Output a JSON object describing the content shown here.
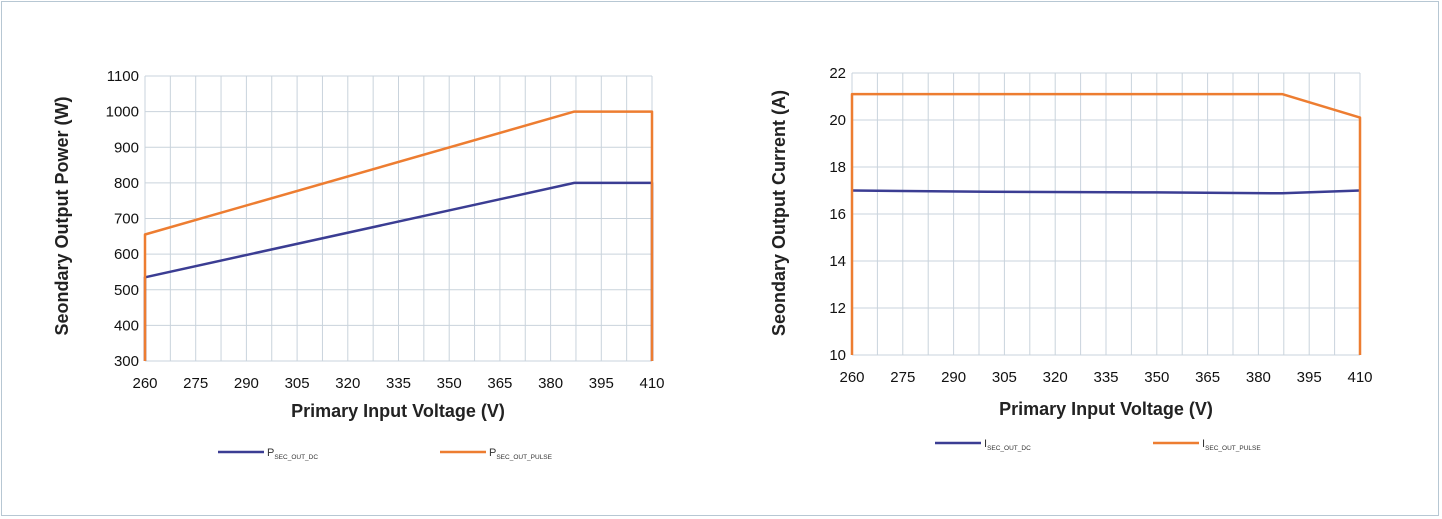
{
  "chart_data": [
    {
      "type": "line",
      "title": "",
      "xlabel": "Primary Input Voltage (V)",
      "ylabel": "Seondary Output Power (W)",
      "xlim": [
        260,
        410
      ],
      "ylim": [
        300,
        1100
      ],
      "xticks": [
        260,
        275,
        290,
        305,
        320,
        335,
        350,
        365,
        380,
        395,
        410
      ],
      "yticks": [
        300,
        400,
        500,
        600,
        700,
        800,
        900,
        1000,
        1100
      ],
      "grid": true,
      "legend_position": "bottom",
      "series": [
        {
          "name": "P",
          "name_sub": "SEC_OUT_DC",
          "color": "#3b3d93",
          "points": [
            [
              260,
              300
            ],
            [
              260,
              535
            ],
            [
              387,
              800
            ],
            [
              410,
              800
            ],
            [
              410,
              300
            ]
          ]
        },
        {
          "name": "P",
          "name_sub": "SEC_OUT_PULSE",
          "color": "#ed7d31",
          "points": [
            [
              260,
              300
            ],
            [
              260,
              655
            ],
            [
              387,
              1000
            ],
            [
              410,
              1000
            ],
            [
              410,
              300
            ]
          ]
        }
      ]
    },
    {
      "type": "line",
      "title": "",
      "xlabel": "Primary Input Voltage (V)",
      "ylabel": "Seondary Output Current (A)",
      "xlim": [
        260,
        410
      ],
      "ylim": [
        10,
        22
      ],
      "xticks": [
        260,
        275,
        290,
        305,
        320,
        335,
        350,
        365,
        380,
        395,
        410
      ],
      "yticks": [
        10,
        12,
        14,
        16,
        18,
        20,
        22
      ],
      "grid": true,
      "legend_position": "bottom",
      "series": [
        {
          "name": "I",
          "name_sub": "SEC_OUT_DC",
          "color": "#3b3d93",
          "points": [
            [
              260,
              17.0
            ],
            [
              300,
              16.95
            ],
            [
              350,
              16.92
            ],
            [
              387,
              16.88
            ],
            [
              410,
              17.0
            ]
          ]
        },
        {
          "name": "I",
          "name_sub": "SEC_OUT_PULSE",
          "color": "#ed7d31",
          "points": [
            [
              260,
              10
            ],
            [
              260,
              21.1
            ],
            [
              387,
              21.1
            ],
            [
              410,
              20.1
            ],
            [
              410,
              10
            ]
          ]
        }
      ]
    }
  ]
}
